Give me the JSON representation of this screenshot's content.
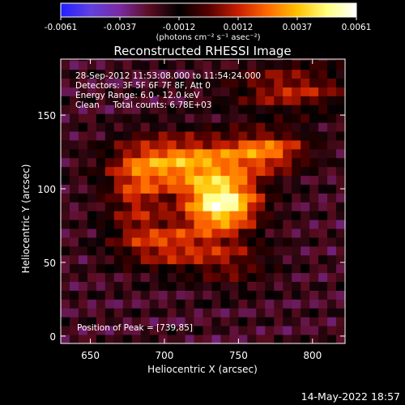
{
  "chart_data": {
    "type": "heatmap",
    "title": "Reconstructed RHESSI Image",
    "xlabel": "Heliocentric X (arcsec)",
    "ylabel": "Heliocentric Y (arcsec)",
    "xlim": [
      630,
      822
    ],
    "ylim": [
      -5,
      188
    ],
    "x_ticks": [
      650,
      700,
      750,
      800
    ],
    "y_ticks": [
      0,
      50,
      100,
      150
    ],
    "colorbar": {
      "min": -0.0061,
      "max": 0.0061,
      "ticks": [
        "-0.0061",
        "-0.0037",
        "-0.0012",
        "0.0012",
        "0.0037",
        "0.0061"
      ],
      "units_label": "(photons cm⁻² s⁻¹ asec⁻²)",
      "colors": [
        "#2020ff",
        "#6040e0",
        "#7a2aa0",
        "#5a0c20",
        "#000000",
        "#550000",
        "#c81e00",
        "#ff6a00",
        "#ffc000",
        "#ffff80",
        "#ffffff"
      ]
    },
    "annotations": [
      "28-Sep-2012 11:53:08.000 to 11:54:24.000",
      "Detectors: 3F 5F 6F 7F 8F, Att 0",
      "Energy Range: 6.0 - 12.0 keV",
      "Clean     Total counts: 6.78E+03"
    ],
    "peak_label": "Position of Peak = [739,85]",
    "peak": {
      "x": 739,
      "y": 85,
      "value": 0.0061
    },
    "background_level": -0.0022,
    "sources": [
      {
        "x": 739,
        "y": 90,
        "sigma_x": 18,
        "sigma_y": 13,
        "amplitude": 0.0074
      },
      {
        "x": 712,
        "y": 118,
        "sigma_x": 30,
        "sigma_y": 13,
        "amplitude": 0.0052
      },
      {
        "x": 770,
        "y": 126,
        "sigma_x": 20,
        "sigma_y": 10,
        "amplitude": 0.0042
      },
      {
        "x": 702,
        "y": 62,
        "sigma_x": 24,
        "sigma_y": 12,
        "amplitude": 0.0034
      },
      {
        "x": 785,
        "y": 168,
        "sigma_x": 30,
        "sigma_y": 12,
        "amplitude": 0.0032
      },
      {
        "x": 680,
        "y": 95,
        "sigma_x": 14,
        "sigma_y": 20,
        "amplitude": 0.0028
      },
      {
        "x": 745,
        "y": 50,
        "sigma_x": 20,
        "sigma_y": 12,
        "amplitude": 0.0022
      }
    ],
    "ripple": {
      "amplitude": 0.0011,
      "period_arcsec": 18
    }
  },
  "footer": {
    "date": "14-May-2022 18:57"
  }
}
